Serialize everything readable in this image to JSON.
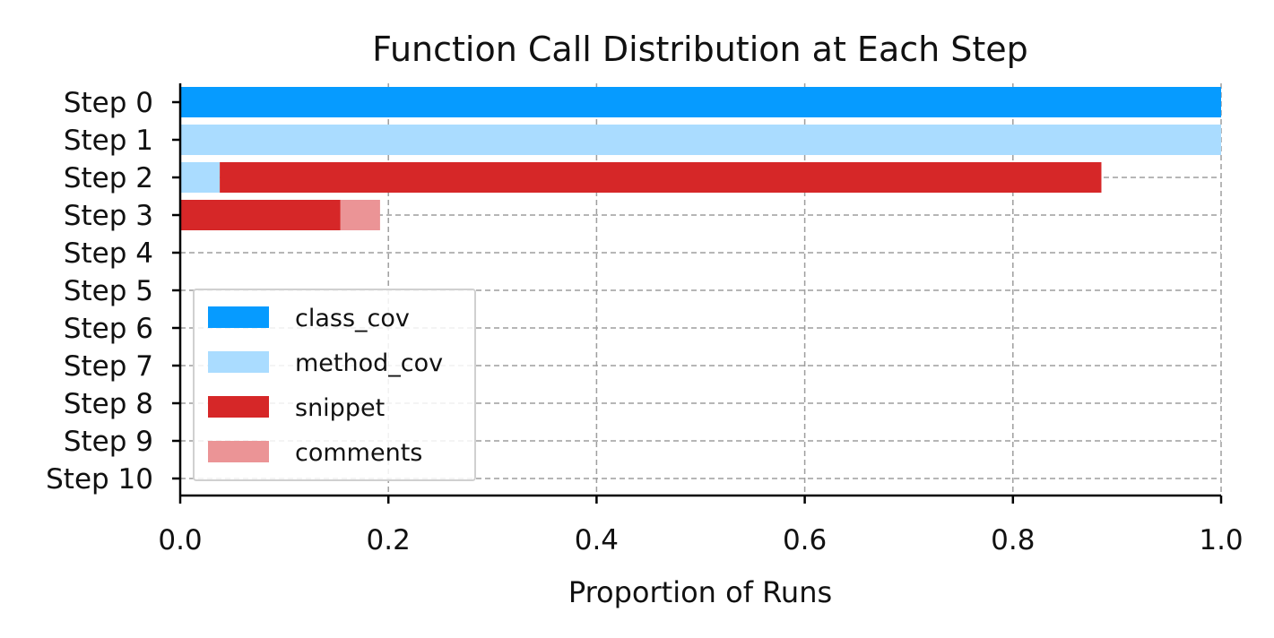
{
  "chart_data": {
    "type": "bar",
    "orientation": "horizontal",
    "stacked": true,
    "title": "Function Call Distribution at Each Step",
    "xlabel": "Proportion of Runs",
    "ylabel": "",
    "xlim": [
      0,
      1
    ],
    "xticks": [
      "0.0",
      "0.2",
      "0.4",
      "0.6",
      "0.8",
      "1.0"
    ],
    "categories": [
      "Step 0",
      "Step 1",
      "Step 2",
      "Step 3",
      "Step 4",
      "Step 5",
      "Step 6",
      "Step 7",
      "Step 8",
      "Step 9",
      "Step 10"
    ],
    "series": [
      {
        "name": "class_cov",
        "color": "#069bff",
        "values": [
          1.0,
          0,
          0,
          0,
          0,
          0,
          0,
          0,
          0,
          0,
          0
        ]
      },
      {
        "name": "method_cov",
        "color": "#aadcff",
        "values": [
          0,
          1.0,
          0.038,
          0,
          0,
          0,
          0,
          0,
          0,
          0,
          0
        ]
      },
      {
        "name": "snippet",
        "color": "#d62728",
        "values": [
          0,
          0,
          0.847,
          0.154,
          0,
          0,
          0,
          0,
          0,
          0,
          0
        ]
      },
      {
        "name": "comments",
        "color": "#eb9496",
        "values": [
          0,
          0,
          0,
          0.038,
          0,
          0,
          0,
          0,
          0,
          0,
          0
        ]
      }
    ],
    "grid": true,
    "legend_position": "lower-left"
  }
}
